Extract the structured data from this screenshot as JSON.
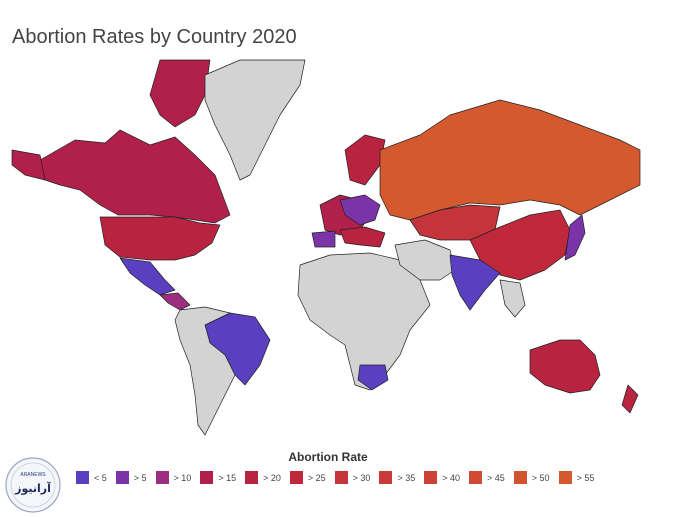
{
  "title": "Abortion Rates by Country 2020",
  "legend": {
    "title": "Abortion Rate",
    "items": [
      {
        "label": "< 5",
        "color": "#5a3fc0"
      },
      {
        "label": "> 5",
        "color": "#7b33a8"
      },
      {
        "label": "> 10",
        "color": "#9b2e7e"
      },
      {
        "label": "> 15",
        "color": "#b0204a"
      },
      {
        "label": "> 20",
        "color": "#b8233f"
      },
      {
        "label": "> 25",
        "color": "#c0283c"
      },
      {
        "label": "> 30",
        "color": "#c5333b"
      },
      {
        "label": "> 35",
        "color": "#c93a38"
      },
      {
        "label": "> 40",
        "color": "#cc4236"
      },
      {
        "label": "> 45",
        "color": "#cf4b33"
      },
      {
        "label": "> 50",
        "color": "#d25230"
      },
      {
        "label": "> 55",
        "color": "#d5592e"
      }
    ]
  },
  "no_data_color": "#d3d3d3",
  "logo": {
    "text": "آرانیوز",
    "small_text": "ARANEWS"
  }
}
